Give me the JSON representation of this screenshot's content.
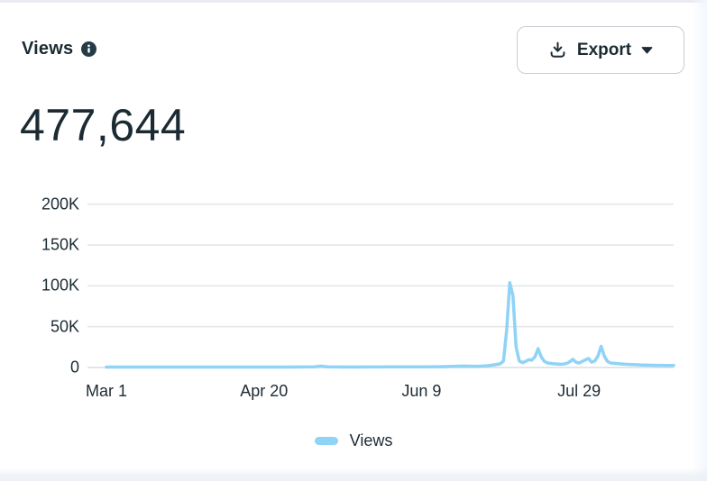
{
  "header": {
    "title": "Views",
    "total": "477,644"
  },
  "toolbar": {
    "export_label": "Export"
  },
  "legend": {
    "items": [
      {
        "label": "Views",
        "color": "#8FD3F6"
      }
    ]
  },
  "colors": {
    "text_primary": "#1C2B33",
    "accent_line": "#8FD3F6",
    "grid_line": "#E3E5E8",
    "zero_line": "#DADDE1",
    "button_border": "#C8CDD4"
  },
  "chart_data": {
    "type": "line",
    "title": "Views",
    "xlabel": "",
    "ylabel": "",
    "x_unit": "days since Mar 1 (daily values)",
    "grid": "horizontal",
    "legend_position": "bottom",
    "ylim": [
      0,
      220000
    ],
    "x_domain_days": [
      0,
      180
    ],
    "xticks": [
      {
        "day": 0,
        "label": "Mar 1"
      },
      {
        "day": 50,
        "label": "Apr 20"
      },
      {
        "day": 100,
        "label": "Jun 9"
      },
      {
        "day": 150,
        "label": "Jul 29"
      }
    ],
    "yticks": [
      {
        "value": 0,
        "label": "0"
      },
      {
        "value": 50000,
        "label": "50K"
      },
      {
        "value": 100000,
        "label": "100K"
      },
      {
        "value": 150000,
        "label": "150K"
      },
      {
        "value": 200000,
        "label": "200K"
      }
    ],
    "total": 477644,
    "peak": {
      "day": 128,
      "approx_date": "Jul 7",
      "value": 104000
    },
    "series": [
      {
        "name": "Views",
        "color": "#8FD3F6",
        "points": [
          [
            0,
            600
          ],
          [
            4,
            500
          ],
          [
            8,
            550
          ],
          [
            12,
            500
          ],
          [
            16,
            550
          ],
          [
            20,
            500
          ],
          [
            24,
            550
          ],
          [
            28,
            500
          ],
          [
            32,
            550
          ],
          [
            36,
            600
          ],
          [
            40,
            550
          ],
          [
            44,
            500
          ],
          [
            48,
            550
          ],
          [
            50,
            500
          ],
          [
            54,
            550
          ],
          [
            58,
            600
          ],
          [
            62,
            650
          ],
          [
            66,
            900
          ],
          [
            68,
            1800
          ],
          [
            70,
            900
          ],
          [
            74,
            650
          ],
          [
            78,
            600
          ],
          [
            82,
            650
          ],
          [
            86,
            700
          ],
          [
            90,
            750
          ],
          [
            94,
            800
          ],
          [
            98,
            900
          ],
          [
            102,
            900
          ],
          [
            106,
            1000
          ],
          [
            110,
            1400
          ],
          [
            113,
            1800
          ],
          [
            116,
            1500
          ],
          [
            119,
            1700
          ],
          [
            121,
            2200
          ],
          [
            123,
            3200
          ],
          [
            125,
            4500
          ],
          [
            126,
            8000
          ],
          [
            127,
            45000
          ],
          [
            128,
            104000
          ],
          [
            129,
            88000
          ],
          [
            130,
            25000
          ],
          [
            131,
            8000
          ],
          [
            132,
            6000
          ],
          [
            133,
            7500
          ],
          [
            134,
            9500
          ],
          [
            135,
            9000
          ],
          [
            136,
            13000
          ],
          [
            137,
            23000
          ],
          [
            138,
            13000
          ],
          [
            139,
            7500
          ],
          [
            140,
            5500
          ],
          [
            142,
            4500
          ],
          [
            144,
            4000
          ],
          [
            145,
            4200
          ],
          [
            146,
            5000
          ],
          [
            147,
            7000
          ],
          [
            148,
            10000
          ],
          [
            149,
            6500
          ],
          [
            150,
            5500
          ],
          [
            151,
            7500
          ],
          [
            153,
            11000
          ],
          [
            154,
            6500
          ],
          [
            155,
            8000
          ],
          [
            156,
            14000
          ],
          [
            157,
            26000
          ],
          [
            158,
            14000
          ],
          [
            159,
            7500
          ],
          [
            160,
            5500
          ],
          [
            162,
            4800
          ],
          [
            164,
            4200
          ],
          [
            166,
            3800
          ],
          [
            168,
            3400
          ],
          [
            170,
            3100
          ],
          [
            172,
            2900
          ],
          [
            174,
            2700
          ],
          [
            176,
            2600
          ],
          [
            178,
            2500
          ],
          [
            180,
            2400
          ]
        ]
      }
    ]
  }
}
